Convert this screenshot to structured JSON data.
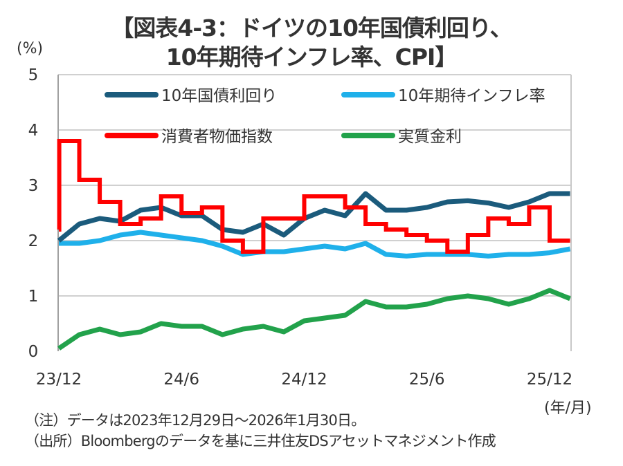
{
  "chart_data": {
    "type": "line",
    "title_line1": "【図表4-3：ドイツの10年国債利回り、",
    "title_line2": "10年期待インフレ率、CPI】",
    "ylabel": "(%)",
    "xlabel": "(年/月)",
    "ylim": [
      0,
      5
    ],
    "yticks": [
      "0",
      "1",
      "2",
      "3",
      "4",
      "5"
    ],
    "xticks": [
      {
        "label": "23/12",
        "month_index": 0
      },
      {
        "label": "24/6",
        "month_index": 6
      },
      {
        "label": "24/12",
        "month_index": 12
      },
      {
        "label": "25/6",
        "month_index": 18
      },
      {
        "label": "25/12",
        "month_index": 24
      }
    ],
    "x_range_months": [
      0,
      25.05
    ],
    "grid": true,
    "legend_placement": "top",
    "series": [
      {
        "name": "10年国債利回り",
        "color": "#1b5b7c",
        "style": "line",
        "values": [
          2.0,
          2.3,
          2.4,
          2.35,
          2.55,
          2.6,
          2.45,
          2.45,
          2.2,
          2.15,
          2.3,
          2.1,
          2.4,
          2.55,
          2.45,
          2.85,
          2.55,
          2.55,
          2.6,
          2.7,
          2.72,
          2.68,
          2.6,
          2.7,
          2.85,
          2.85
        ]
      },
      {
        "name": "10年期待インフレ率",
        "color": "#1fb0ea",
        "style": "line",
        "values": [
          1.95,
          1.95,
          2.0,
          2.1,
          2.15,
          2.1,
          2.05,
          2.0,
          1.9,
          1.75,
          1.8,
          1.8,
          1.85,
          1.9,
          1.85,
          1.95,
          1.75,
          1.72,
          1.75,
          1.75,
          1.75,
          1.72,
          1.75,
          1.75,
          1.78,
          1.85
        ]
      },
      {
        "name": "消費者物価指数",
        "color": "#ff0000",
        "style": "step",
        "start_value": 2.2,
        "values": [
          3.8,
          3.1,
          2.7,
          2.3,
          2.4,
          2.8,
          2.5,
          2.6,
          2.0,
          1.8,
          2.4,
          2.4,
          2.8,
          2.8,
          2.6,
          2.3,
          2.2,
          2.1,
          2.0,
          1.8,
          2.1,
          2.4,
          2.3,
          2.6,
          2.0
        ]
      },
      {
        "name": "実質金利",
        "color": "#22a24b",
        "style": "line",
        "values": [
          0.05,
          0.3,
          0.4,
          0.3,
          0.35,
          0.5,
          0.45,
          0.45,
          0.3,
          0.4,
          0.45,
          0.35,
          0.55,
          0.6,
          0.65,
          0.9,
          0.8,
          0.8,
          0.85,
          0.95,
          1.0,
          0.95,
          0.85,
          0.95,
          1.1,
          0.95
        ]
      }
    ]
  },
  "notes": {
    "note": "（注）データは2023年12月29日～2026年1月30日。",
    "source": "（出所）Bloombergのデータを基に三井住友DSアセットマネジメント作成"
  }
}
